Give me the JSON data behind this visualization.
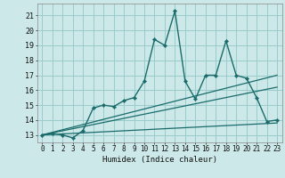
{
  "xlabel": "Humidex (Indice chaleur)",
  "bg_color": "#cce8e8",
  "grid_color": "#99cccc",
  "line_color": "#1a6b6b",
  "xlim": [
    -0.5,
    23.5
  ],
  "ylim": [
    12.5,
    21.8
  ],
  "xticks": [
    0,
    1,
    2,
    3,
    4,
    5,
    6,
    7,
    8,
    9,
    10,
    11,
    12,
    13,
    14,
    15,
    16,
    17,
    18,
    19,
    20,
    21,
    22,
    23
  ],
  "yticks": [
    13,
    14,
    15,
    16,
    17,
    18,
    19,
    20,
    21
  ],
  "main_x": [
    0,
    1,
    2,
    3,
    4,
    5,
    6,
    7,
    8,
    9,
    10,
    11,
    12,
    13,
    14,
    15,
    16,
    17,
    18,
    19,
    20,
    21,
    22,
    23
  ],
  "main_y": [
    13.0,
    13.1,
    13.0,
    12.8,
    13.3,
    14.8,
    15.0,
    14.9,
    15.3,
    15.5,
    16.6,
    19.4,
    19.0,
    21.3,
    16.6,
    15.4,
    17.0,
    17.0,
    19.3,
    17.0,
    16.8,
    15.5,
    13.9,
    14.0
  ],
  "line2_x": [
    0,
    23
  ],
  "line2_y": [
    13.0,
    17.0
  ],
  "line3_x": [
    0,
    23
  ],
  "line3_y": [
    13.0,
    16.2
  ],
  "line4_x": [
    0,
    23
  ],
  "line4_y": [
    13.0,
    13.8
  ]
}
